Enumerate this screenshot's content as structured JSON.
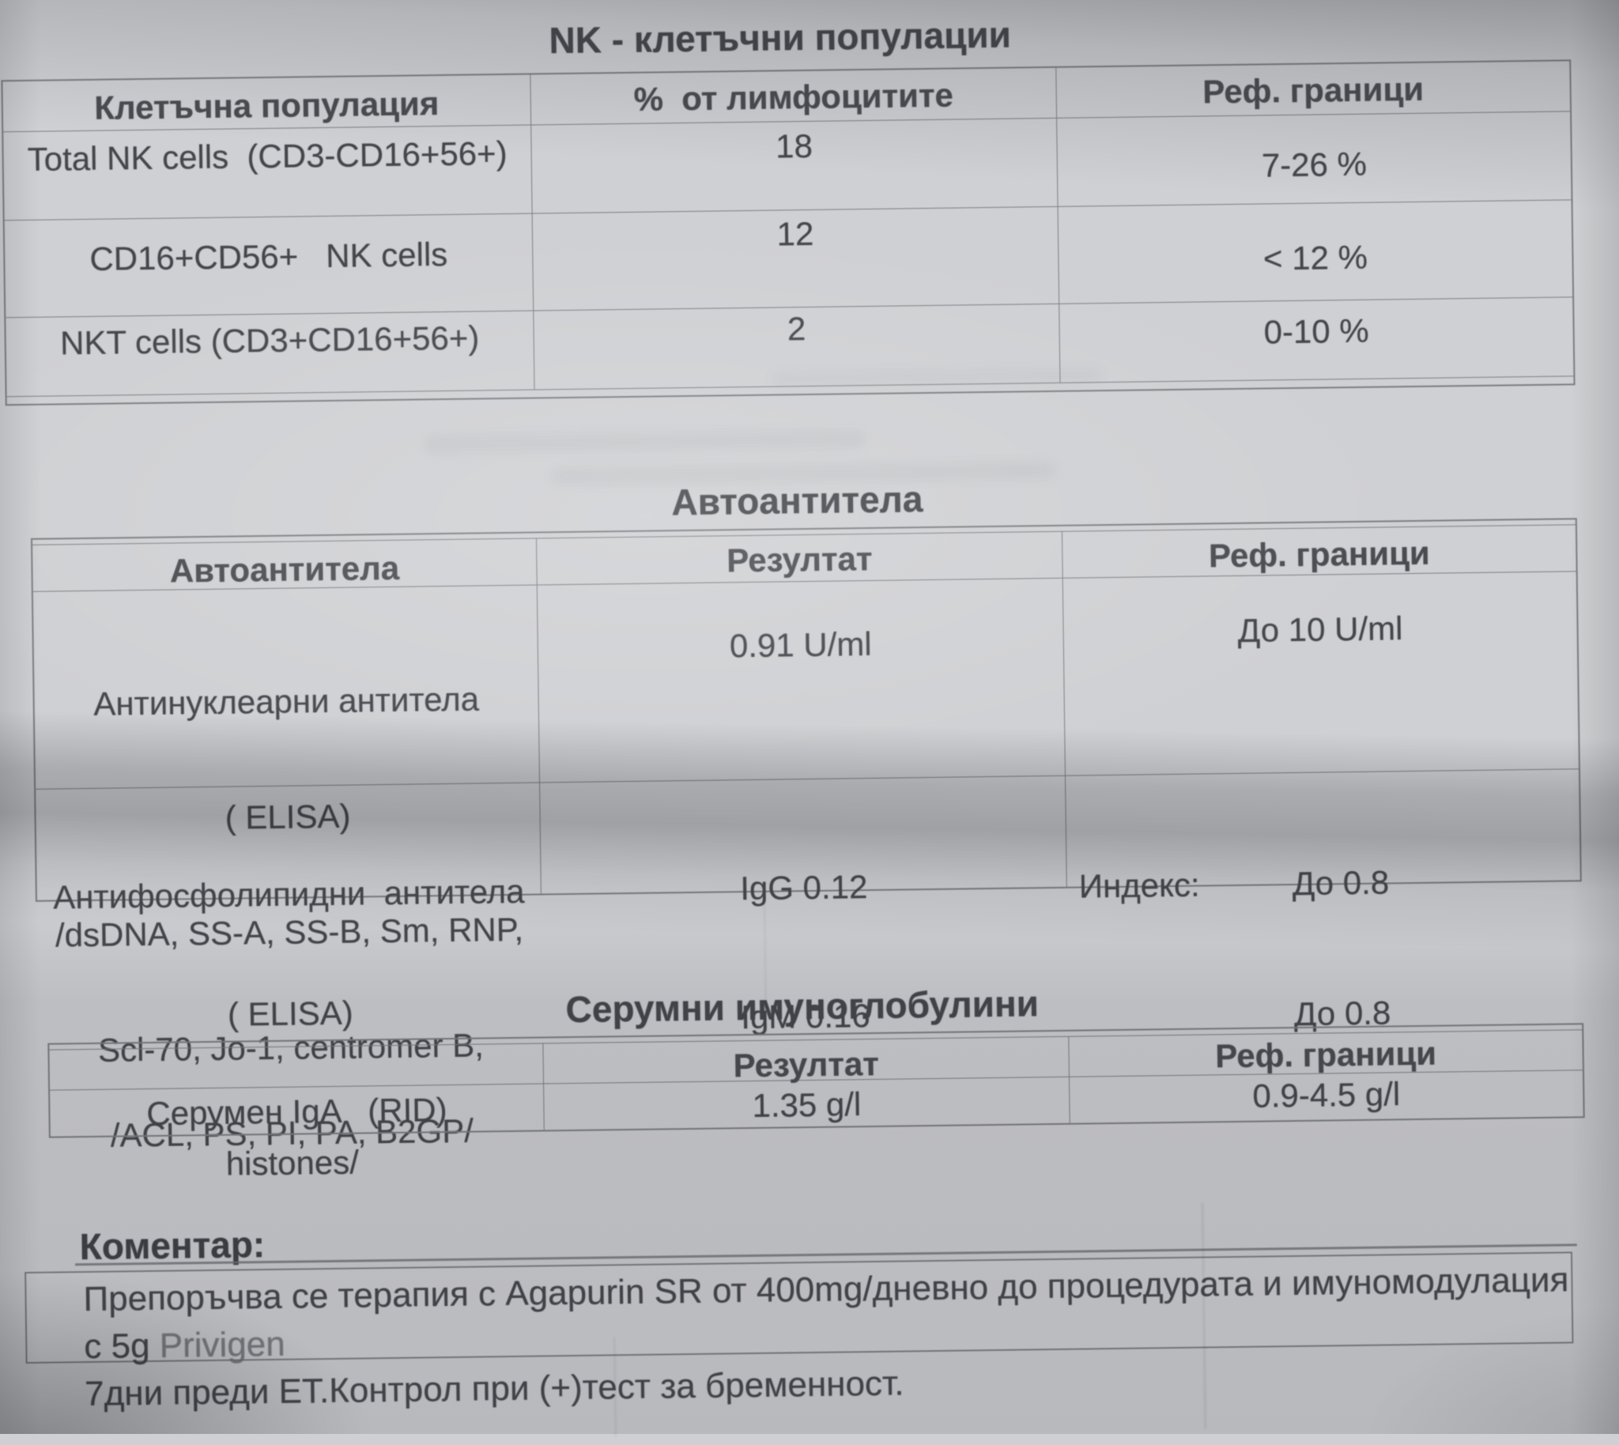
{
  "colors": {
    "paper": "#cfd0d3",
    "ink": "#45464b",
    "table_border": "#7d7e82"
  },
  "nk_table": {
    "title": "NK - клетъчни популации",
    "headers": [
      "Клетъчна популация",
      "%  от лимфоцитите",
      "Реф. граници"
    ],
    "rows": [
      {
        "population": "Total NK cells  (CD3-CD16+56+)",
        "percent": "18",
        "ref": "7-26 %"
      },
      {
        "population": "CD16+CD56+   NK cells",
        "percent": "12",
        "ref": "< 12 %"
      },
      {
        "population": "NKT cells (CD3+CD16+56+)",
        "percent": "2",
        "ref": "0-10 %"
      }
    ]
  },
  "auto_table": {
    "title": "Автоантитела",
    "headers": [
      "Автоантитела",
      "Резултат",
      "Реф. граници"
    ],
    "rows": [
      {
        "name_lines": [
          "Антинуклеарни антитела",
          "( ELISA)",
          "/dsDNA, SS-A, SS-B, Sm, RNP,",
          "Scl-70, Jo-1, centromer B,",
          "histones/"
        ],
        "result_lines": [
          "0.91 U/ml"
        ],
        "ref_lines": [
          "До 10 U/ml"
        ]
      },
      {
        "name_lines": [
          "Антифосфолипидни  антитела",
          "( ELISA)",
          "/ACL, PS, PI, PA, B2GP/"
        ],
        "result_lines": [
          "IgG 0.12",
          "IgM 0.16"
        ],
        "ref_label": "Индекс:",
        "ref_lines": [
          "До 0.8",
          "До 0.8"
        ]
      }
    ]
  },
  "serum_table": {
    "title": "Серумни имуноглобулини",
    "headers": [
      "",
      "Резултат",
      "Реф. граници"
    ],
    "rows": [
      {
        "name": "Серумен IgA   (RID)",
        "result": "1.35 g/l",
        "ref": "0.9-4.5 g/l"
      }
    ]
  },
  "comment": {
    "label": "Коментар:",
    "line1_main": "Препоръчва се терапия с Agapurin SR от 400mg/дневно до процедурата и имуномодулация с 5g ",
    "line1_fade": "Privigen",
    "line2": "7дни преди ЕТ.Контрол при (+)тест за бременност."
  }
}
